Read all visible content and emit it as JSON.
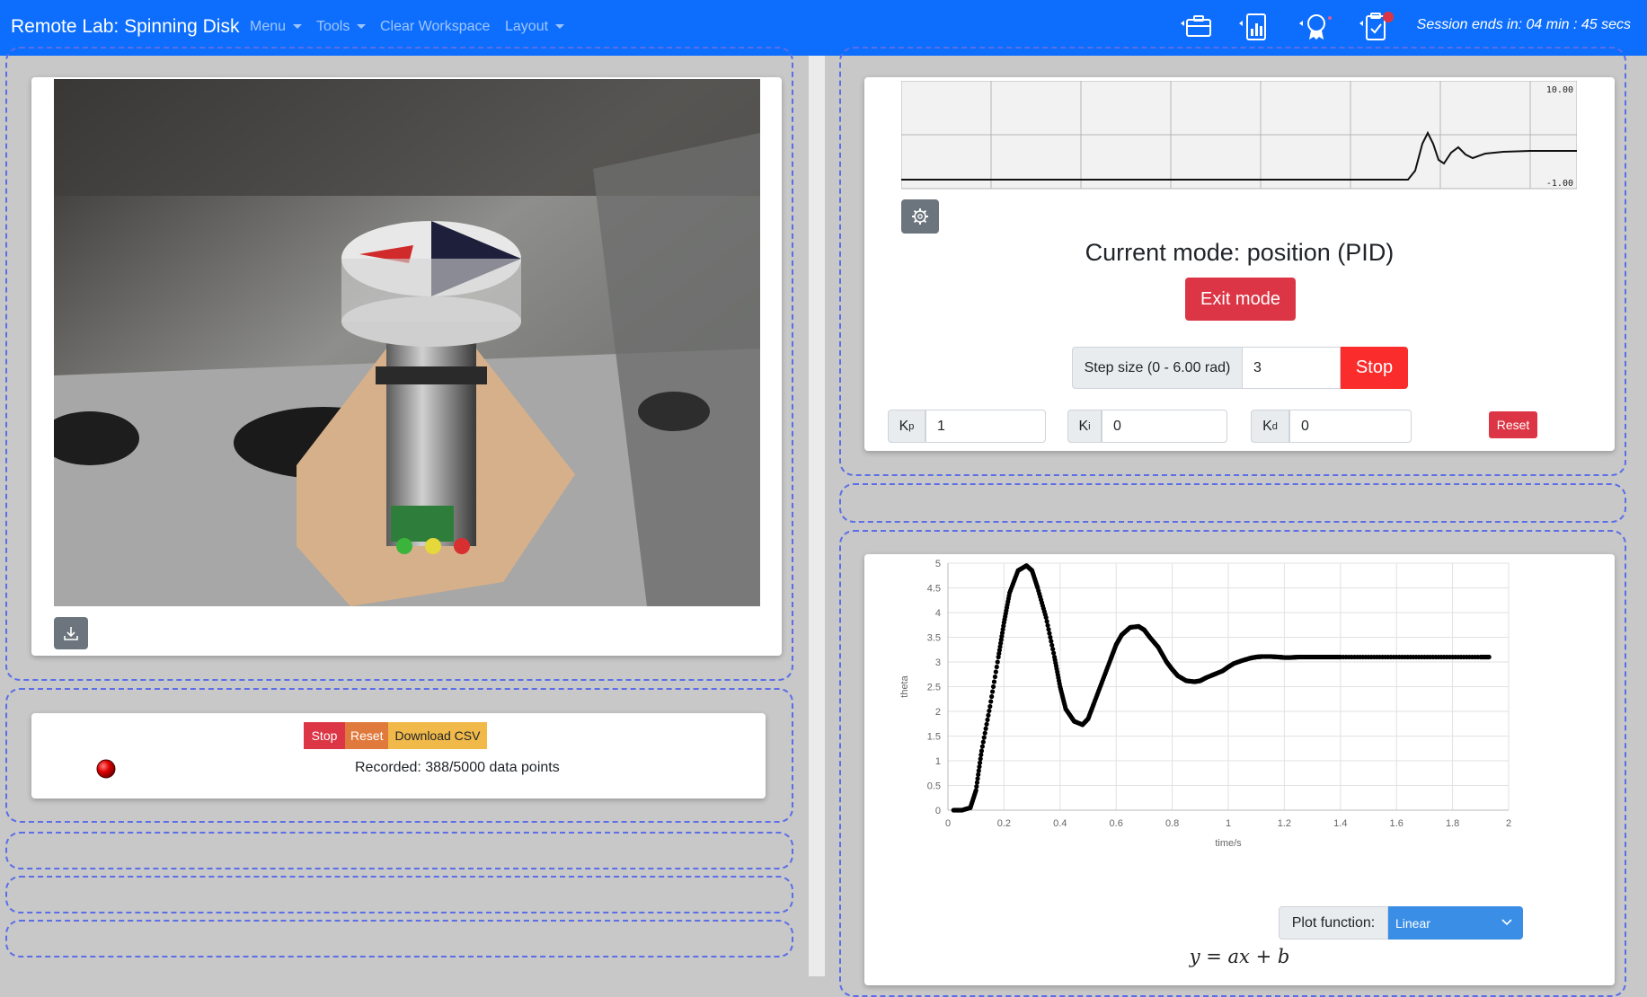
{
  "nav": {
    "brand": "Remote Lab: Spinning Disk",
    "menu": "Menu",
    "tools": "Tools",
    "clear_workspace": "Clear Workspace",
    "layout": "Layout",
    "session": "Session ends in: 04 min : 45 secs"
  },
  "data_recorder": {
    "stop": "Stop",
    "reset": "Reset",
    "download_csv": "Download CSV",
    "status": "Recorded: 388/5000 data points"
  },
  "mini_graph": {
    "ymax_label": "10.00",
    "ymin_label": "-1.00"
  },
  "controls": {
    "mode_title": "Current mode: position (PID)",
    "exit_mode": "Exit mode",
    "step_label": "Step size (0 - 6.00 rad)",
    "step_value": "3",
    "stop": "Stop",
    "kp_label": "K",
    "kp_sub": "p",
    "kp_value": "1",
    "ki_label": "K",
    "ki_sub": "i",
    "ki_value": "0",
    "kd_label": "K",
    "kd_sub": "d",
    "kd_value": "0",
    "reset": "Reset"
  },
  "plot": {
    "plot_function_label": "Plot function:",
    "plot_function_value": "Linear",
    "equation": "y = ax + b"
  },
  "chart_data": {
    "type": "scatter",
    "title": "",
    "xlabel": "time/s",
    "ylabel": "theta",
    "xlim": [
      0,
      2
    ],
    "ylim": [
      0,
      5
    ],
    "xticks": [
      "0",
      "0.2",
      "0.4",
      "0.6",
      "0.8",
      "1",
      "1.2",
      "1.4",
      "1.6",
      "1.8",
      "2"
    ],
    "yticks": [
      "0",
      "0.5",
      "1",
      "1.5",
      "2",
      "2.5",
      "3",
      "3.5",
      "4",
      "4.5",
      "5"
    ],
    "series": [
      {
        "name": "theta",
        "x": [
          0.02,
          0.05,
          0.08,
          0.1,
          0.12,
          0.15,
          0.18,
          0.2,
          0.22,
          0.25,
          0.28,
          0.3,
          0.32,
          0.35,
          0.38,
          0.4,
          0.42,
          0.45,
          0.48,
          0.5,
          0.52,
          0.55,
          0.58,
          0.6,
          0.62,
          0.65,
          0.68,
          0.7,
          0.72,
          0.75,
          0.78,
          0.8,
          0.82,
          0.85,
          0.88,
          0.9,
          0.92,
          0.95,
          0.98,
          1.0,
          1.02,
          1.05,
          1.08,
          1.1,
          1.12,
          1.15,
          1.18,
          1.2,
          1.22,
          1.25,
          1.3,
          1.35,
          1.4,
          1.5,
          1.6,
          1.7,
          1.8,
          1.9,
          1.93
        ],
        "y": [
          0.0,
          0.0,
          0.05,
          0.4,
          1.2,
          2.1,
          3.1,
          3.8,
          4.4,
          4.85,
          4.95,
          4.85,
          4.5,
          3.9,
          3.1,
          2.5,
          2.05,
          1.8,
          1.73,
          1.85,
          2.15,
          2.6,
          3.05,
          3.35,
          3.55,
          3.7,
          3.72,
          3.65,
          3.5,
          3.3,
          3.0,
          2.85,
          2.72,
          2.62,
          2.6,
          2.62,
          2.68,
          2.75,
          2.82,
          2.9,
          2.97,
          3.03,
          3.08,
          3.1,
          3.11,
          3.11,
          3.1,
          3.09,
          3.09,
          3.1,
          3.1,
          3.1,
          3.1,
          3.1,
          3.1,
          3.1,
          3.1,
          3.1,
          3.1
        ]
      }
    ]
  }
}
